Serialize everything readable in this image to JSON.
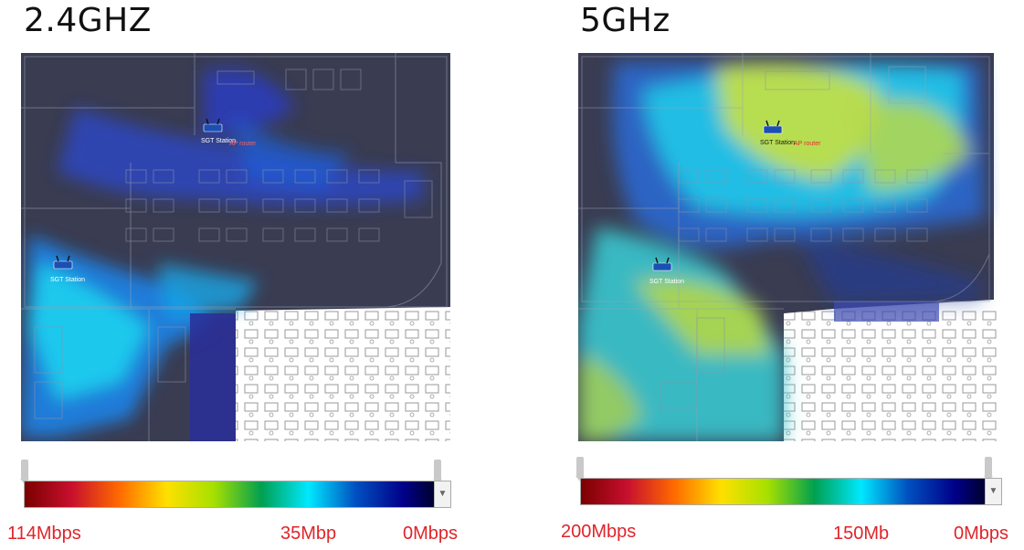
{
  "panels": [
    {
      "title": "2.4GHZ",
      "scale": {
        "max_label": "114Mbps",
        "mid_label": "35Mbp",
        "min_label": "0Mbps",
        "max_value": 114,
        "mid_value": 35,
        "min_value": 0,
        "unit": "Mbps"
      },
      "ap_labels": [
        "AP router",
        "SGT Station",
        "SGT Station"
      ]
    },
    {
      "title": "5GHz",
      "scale": {
        "max_label": "200Mbps",
        "mid_label": "150Mb",
        "min_label": "0Mbps",
        "max_value": 200,
        "mid_value": 150,
        "min_value": 0,
        "unit": "Mbps"
      },
      "ap_labels": [
        "AP router",
        "SGT Station",
        "SGT Station"
      ]
    }
  ],
  "colors": {
    "gradient": [
      "#7a0000",
      "#c8102e",
      "#ff6a00",
      "#ffe000",
      "#a6e000",
      "#00a050",
      "#00e8ff",
      "#0050c0",
      "#00008a",
      "#000000"
    ],
    "label_red": "#e0242a"
  }
}
